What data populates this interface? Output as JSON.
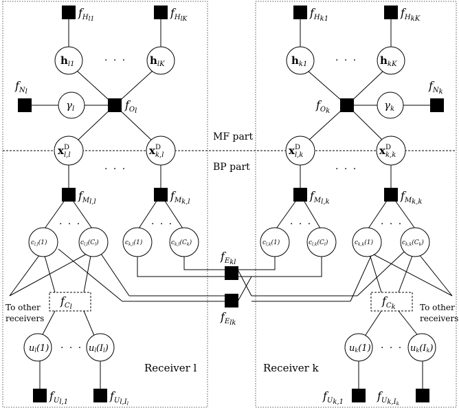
{
  "labels": {
    "mf_part": "MF part",
    "bp_part": "BP part",
    "receiver_l": "Receiver l",
    "receiver_k": "Receiver k",
    "to_other_left_1": "To other",
    "to_other_left_2": "receivers",
    "to_other_right_1": "To other",
    "to_other_right_2": "receivers",
    "dots": "· · ·"
  },
  "left": {
    "f_h1": "f",
    "f_h1_sub": "H",
    "f_h1_idx": "l1",
    "f_hK": "f",
    "f_hK_sub": "H",
    "f_hK_idx": "lK",
    "h1": "h",
    "h1_idx": "l1",
    "hK": "h",
    "hK_idx": "lK",
    "fN": "f",
    "fN_sub": "N",
    "fN_idx": "l",
    "gamma": "γ",
    "gamma_idx": "l",
    "fO": "f",
    "fO_sub": "O",
    "fO_idx": "l",
    "x1": "x",
    "x1_sup": "D",
    "x1_idx": "l,l",
    "x2": "x",
    "x2_sup": "D",
    "x2_idx": "k,l",
    "fM1": "f",
    "fM1_sub": "M",
    "fM1_idx": "l,l",
    "fM2": "f",
    "fM2_sub": "M",
    "fM2_idx": "k,l",
    "c1": "c",
    "c1_idx": "l,l",
    "c1_arg": "(1)",
    "c2": "c",
    "c2_idx": "l,l",
    "c2_arg": "(C",
    "c2_argidx": "l",
    "c2_close": ")",
    "c3": "c",
    "c3_idx": "k,l",
    "c3_arg": "(1)",
    "c4": "c",
    "c4_idx": "k,l",
    "c4_arg": "(C",
    "c4_argidx": "k",
    "c4_close": ")",
    "fC": "f",
    "fC_sub": "C",
    "fC_idx": "l",
    "u1": "u",
    "u1_idx": "l",
    "u1_arg": "(1)",
    "u2": "u",
    "u2_idx": "l",
    "u2_arg": "(I",
    "u2_argidx": "l",
    "u2_close": ")",
    "fU1": "f",
    "fU1_sub": "U",
    "fU1_idx": "l,1",
    "fU2": "f",
    "fU2_sub": "U",
    "fU2_idx": "l,I",
    "fU2_idx2": "l"
  },
  "center": {
    "fEkl": "f",
    "fEkl_sub": "E",
    "fEkl_idx": "kl",
    "fElk": "f",
    "fElk_sub": "E",
    "fElk_idx": "lk"
  },
  "right": {
    "f_h1": "f",
    "f_h1_sub": "H",
    "f_h1_idx": "k1",
    "f_hK": "f",
    "f_hK_sub": "H",
    "f_hK_idx": "kK",
    "h1": "h",
    "h1_idx": "k1",
    "hK": "h",
    "hK_idx": "kK",
    "fN": "f",
    "fN_sub": "N",
    "fN_idx": "k",
    "gamma": "γ",
    "gamma_idx": "k",
    "fO": "f",
    "fO_sub": "O",
    "fO_idx": "k",
    "x1": "x",
    "x1_sup": "D",
    "x1_idx": "l,k",
    "x2": "x",
    "x2_sup": "D",
    "x2_idx": "k,k",
    "fM1": "f",
    "fM1_sub": "M",
    "fM1_idx": "l,k",
    "fM2": "f",
    "fM2_sub": "M",
    "fM2_idx": "k,k",
    "c1": "c",
    "c1_idx": "l,k",
    "c1_arg": "(1)",
    "c2": "c",
    "c2_idx": "l,k",
    "c2_arg": "(C",
    "c2_argidx": "l",
    "c2_close": ")",
    "c3": "c",
    "c3_idx": "k,k",
    "c3_arg": "(1)",
    "c4": "c",
    "c4_idx": "k,k",
    "c4_arg": "(C",
    "c4_argidx": "k",
    "c4_close": ")",
    "fC": "f",
    "fC_sub": "C",
    "fC_idx": "k",
    "u1": "u",
    "u1_idx": "k",
    "u1_arg": "(1)",
    "u2": "u",
    "u2_idx": "k",
    "u2_arg": "(I",
    "u2_argidx": "k",
    "u2_close": ")",
    "fU1": "f",
    "fU1_sub": "U",
    "fU1_idx": "k,1",
    "fU2": "f",
    "fU2_sub": "U",
    "fU2_idx": "k,I",
    "fU2_idx2": "k"
  }
}
